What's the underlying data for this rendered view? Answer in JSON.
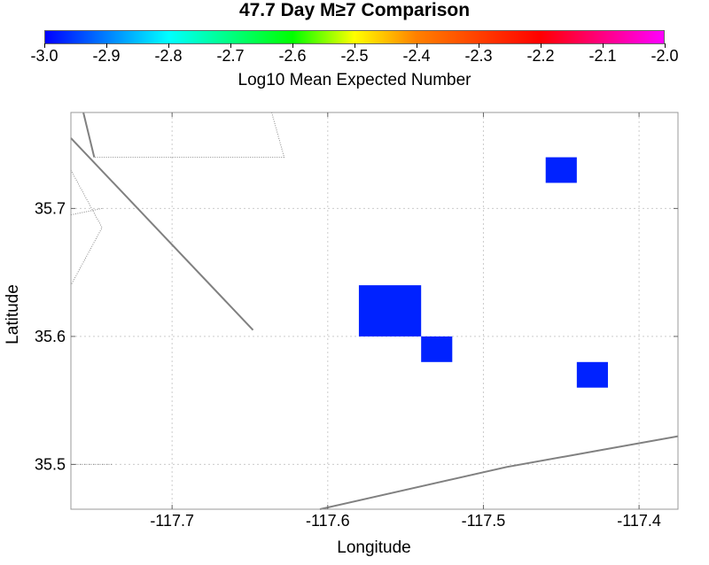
{
  "title": "47.7 Day M≥7 Comparison",
  "colorbar": {
    "title": "Log10 Mean Expected Number",
    "min": -3.0,
    "max": -2.0,
    "tick_labels": [
      "-3.0",
      "-2.9",
      "-2.8",
      "-2.7",
      "-2.6",
      "-2.5",
      "-2.4",
      "-2.3",
      "-2.2",
      "-2.1",
      "-2.0"
    ]
  },
  "map": {
    "xlabel": "Longitude",
    "ylabel": "Latitude",
    "x_range": [
      -117.765,
      -117.375
    ],
    "y_range": [
      35.465,
      35.775
    ],
    "x_ticks": [
      -117.7,
      -117.6,
      -117.5,
      -117.4
    ],
    "x_tick_labels": [
      "-117.7",
      "-117.6",
      "-117.5",
      "-117.4"
    ],
    "y_ticks": [
      35.5,
      35.6,
      35.7
    ],
    "y_tick_labels": [
      "35.5",
      "35.6",
      "35.7"
    ],
    "cell_color": "#0022ff",
    "cells": [
      {
        "lon": [
          -117.58,
          -117.54
        ],
        "lat": [
          35.6,
          35.64
        ]
      },
      {
        "lon": [
          -117.54,
          -117.52
        ],
        "lat": [
          35.58,
          35.6
        ]
      },
      {
        "lon": [
          -117.46,
          -117.44
        ],
        "lat": [
          35.72,
          35.74
        ]
      },
      {
        "lon": [
          -117.44,
          -117.42
        ],
        "lat": [
          35.56,
          35.58
        ]
      }
    ],
    "faults": [
      [
        [
          -117.765,
          35.755
        ],
        [
          -117.648,
          35.605
        ]
      ],
      [
        [
          -117.757,
          35.775
        ],
        [
          -117.75,
          35.74
        ]
      ],
      [
        [
          -117.605,
          35.465
        ],
        [
          -117.485,
          35.498
        ],
        [
          -117.375,
          35.522
        ]
      ]
    ],
    "boundaries": [
      [
        [
          -117.757,
          35.775
        ],
        [
          -117.636,
          35.775
        ],
        [
          -117.628,
          35.74
        ],
        [
          -117.75,
          35.74
        ]
      ],
      [
        [
          -117.765,
          35.73
        ],
        [
          -117.745,
          35.685
        ],
        [
          -117.765,
          35.64
        ]
      ],
      [
        [
          -117.765,
          35.695
        ],
        [
          -117.745,
          35.7
        ]
      ],
      [
        [
          -117.765,
          35.5
        ],
        [
          -117.738,
          35.5
        ]
      ]
    ]
  }
}
